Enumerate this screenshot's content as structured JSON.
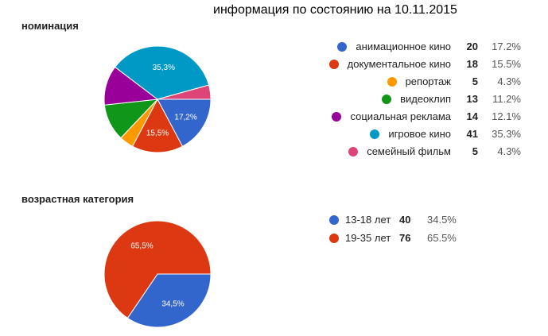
{
  "header": {
    "title": "информация по состоянию на 10.11.2015"
  },
  "chart_data": [
    {
      "type": "pie",
      "title": "номинация",
      "legend": "right",
      "series": [
        {
          "name": "анимационное кино",
          "value": 20,
          "percent": "17.2%",
          "slice_label": "17,2%",
          "color": "#3366cc"
        },
        {
          "name": "документальное кино",
          "value": 18,
          "percent": "15.5%",
          "slice_label": "15,5%",
          "color": "#dc3912"
        },
        {
          "name": "репортаж",
          "value": 5,
          "percent": "4.3%",
          "slice_label": "",
          "color": "#ff9900"
        },
        {
          "name": "видеоклип",
          "value": 13,
          "percent": "11.2%",
          "slice_label": "",
          "color": "#109618"
        },
        {
          "name": "социальная реклама",
          "value": 14,
          "percent": "12.1%",
          "slice_label": "",
          "color": "#990099"
        },
        {
          "name": "игровое кино",
          "value": 41,
          "percent": "35.3%",
          "slice_label": "35,3%",
          "color": "#0099c6"
        },
        {
          "name": "семейный фильм",
          "value": 5,
          "percent": "4.3%",
          "slice_label": "",
          "color": "#dd4477"
        }
      ]
    },
    {
      "type": "pie",
      "title": "возрастная категория",
      "legend": "right",
      "series": [
        {
          "name": "13-18 лет",
          "value": 40,
          "percent": "34.5%",
          "slice_label": "34,5%",
          "color": "#3366cc"
        },
        {
          "name": "19-35 лет",
          "value": 76,
          "percent": "65.5%",
          "slice_label": "65,5%",
          "color": "#dc3912"
        }
      ]
    }
  ]
}
